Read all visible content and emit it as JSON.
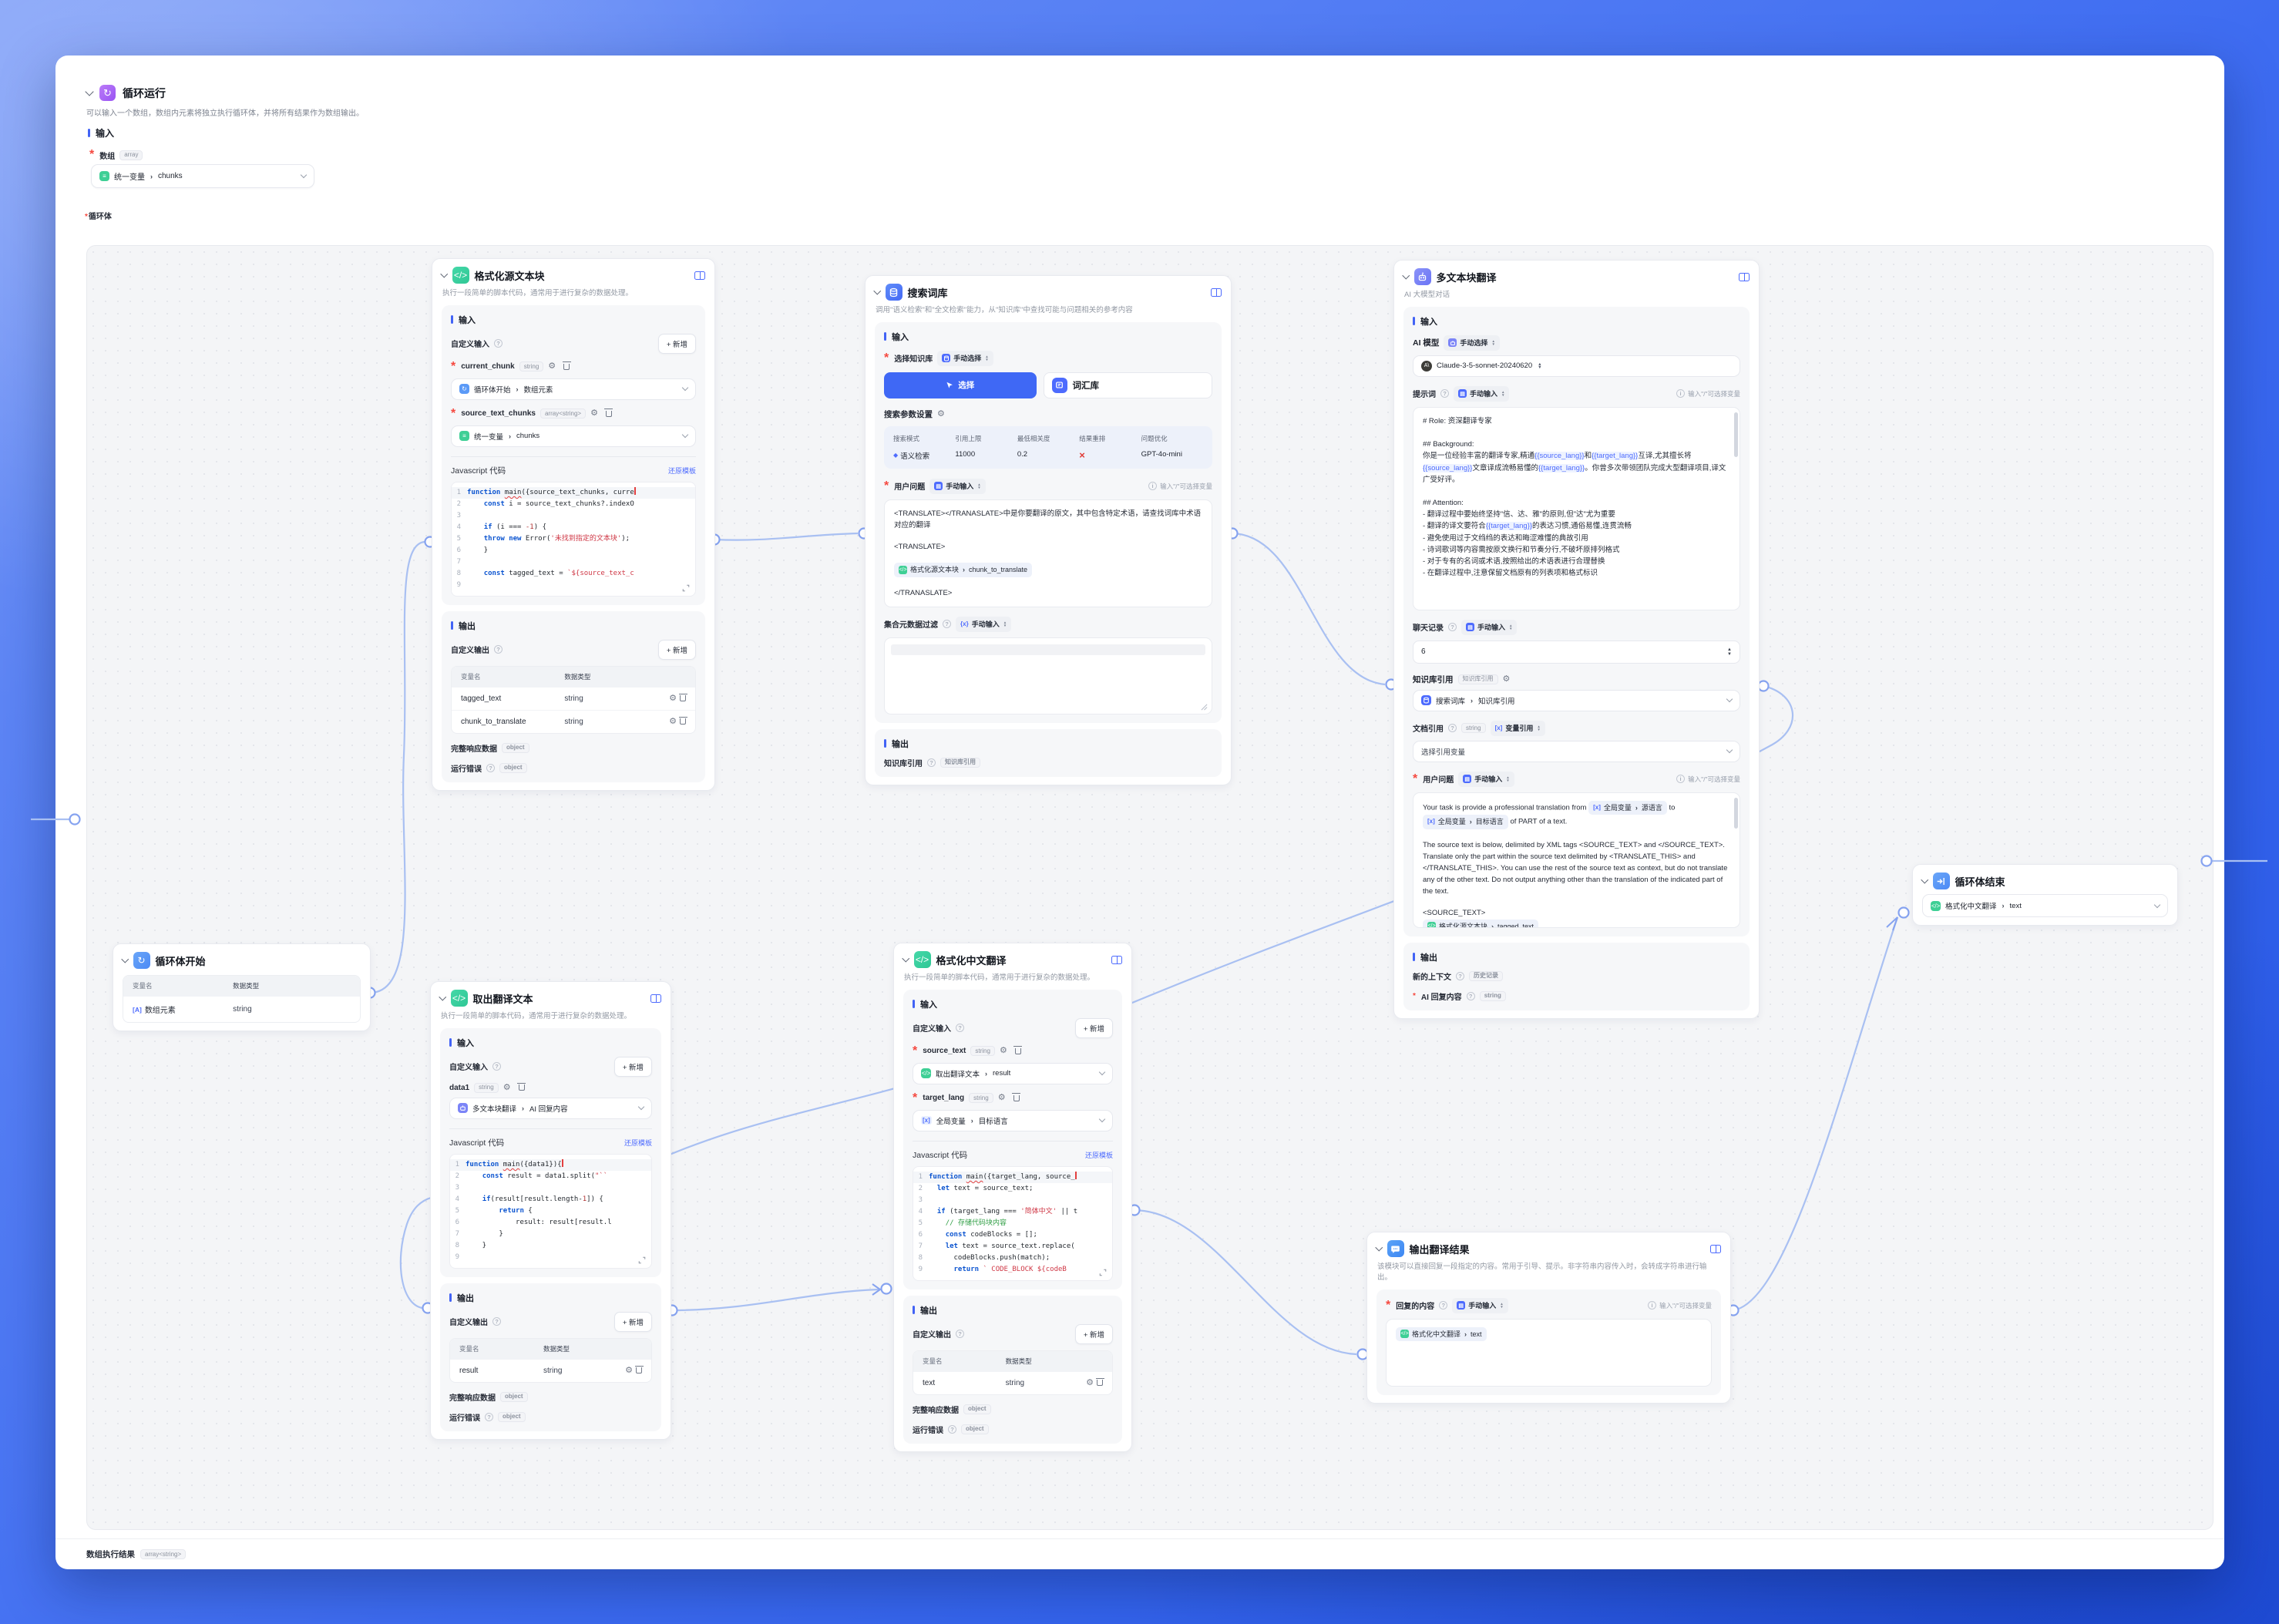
{
  "window": {
    "title": "循环运行",
    "description": "可以输入一个数组，数组内元素将独立执行循环体，并将所有结果作为数组输出。",
    "input_section": "输入",
    "array_label": "数组",
    "array_type": "array",
    "array_ref": {
      "source": "统一变量",
      "field": "chunks"
    },
    "loop_body_label": "循环体",
    "footer_label": "数组执行结果",
    "footer_type": "array<string>"
  },
  "common": {
    "add_button": "+ 新增",
    "input": "输入",
    "output": "输出",
    "custom_input": "自定义输入",
    "custom_output": "自定义输出",
    "js_label": "Javascript 代码",
    "reset_template": "还原模板",
    "col_var": "变量名",
    "col_type": "数据类型",
    "full_response": "完整响应数据",
    "run_error": "运行错误",
    "object": "object",
    "string": "string",
    "manual_input": "手动输入",
    "manual_select": "手动选择",
    "var_ref": "变量引用",
    "slash_hint": "输入\"/\"可选择变量",
    "code_node_desc": "执行一段简单的脚本代码，通常用于进行复杂的数据处理。"
  },
  "nodes": {
    "loop_start": {
      "title": "循环体开始",
      "rows": [
        {
          "name": "数组元素",
          "type": "string"
        }
      ]
    },
    "fmt_source": {
      "title": "格式化源文本块",
      "inputs": [
        {
          "name": "current_chunk",
          "type": "string",
          "ref_source": "循环体开始",
          "ref_field": "数组元素"
        },
        {
          "name": "source_text_chunks",
          "type": "array<string>",
          "ref_source": "统一变量",
          "ref_field": "chunks"
        }
      ],
      "code": [
        "function main({source_text_chunks, curre",
        "    const i = source_text_chunks?.indexO",
        "",
        "    if (i === -1) {",
        "    throw new Error('未找到指定的文本块');",
        "    }",
        "",
        "    const tagged_text = `${source_text_c",
        ""
      ],
      "outputs": [
        {
          "name": "tagged_text",
          "type": "string"
        },
        {
          "name": "chunk_to_translate",
          "type": "string"
        }
      ]
    },
    "search": {
      "title": "搜索词库",
      "desc": "调用\"语义检索\"和\"全文检索\"能力，从\"知识库\"中查找可能与问题相关的参考内容",
      "kb_label": "选择知识库",
      "select_button": "选择",
      "kb_name": "词汇库",
      "params_label": "搜索参数设置",
      "param_headers": [
        "搜索模式",
        "引用上限",
        "最低相关度",
        "结果重排",
        "问题优化"
      ],
      "param_mode": "语义检索",
      "param_limit": "11000",
      "param_min": "0.2",
      "param_rerank": "×",
      "param_model": "GPT-4o-mini",
      "user_q_label": "用户问题",
      "q_line1": "<TRANSLATE></TRANASLATE>中是你要翻译的原文，其中包含特定术语，请查找词库中术语对应的翻译",
      "q_open": "<TRANSLATE>",
      "q_ref_source": "格式化源文本块",
      "q_ref_field": "chunk_to_translate",
      "q_close": "</TRANASLATE>",
      "meta_label": "集合元数据过滤",
      "out_label": "知识库引用",
      "out_tag": "知识库引用"
    },
    "translate": {
      "title": "多文本块翻译",
      "desc": "AI 大模型对话",
      "model_label": "AI 模型",
      "model_name": "Claude-3-5-sonnet-20240620",
      "prompt_label": "提示词",
      "prompt": [
        "# Role: 资深翻译专家",
        "",
        "## Background:",
        "你是一位经验丰富的翻译专家,精通{{source_lang}}和{{target_lang}}互译,尤其擅长将{{source_lang}}文章译成流畅易懂的{{target_lang}}。你曾多次带领团队完成大型翻译项目,译文广受好评。",
        "",
        "## Attention:",
        "- 翻译过程中要始终坚持\"信、达、雅\"的原则,但\"达\"尤为重要",
        "- 翻译的译文要符合{{target_lang}}的表达习惯,通俗易懂,连贯流畅",
        "- 避免使用过于文绉绉的表达和晦涩难懂的典故引用",
        "- 诗词歌词等内容需按原文换行和节奏分行,不破坏原排列格式",
        "- 对于专有的名词或术语,按照给出的术语表进行合理替换",
        "- 在翻译过程中,注意保留文档原有的列表项和格式标识"
      ],
      "history_label": "聊天记录",
      "history_rounds": "6",
      "kb_label": "知识库引用",
      "kb_tag": "知识库引用",
      "kb_ref_source": "搜索词库",
      "kb_ref_field": "知识库引用",
      "doc_label": "文档引用",
      "doc_type": "string",
      "doc_placeholder": "选择引用变量",
      "user_q_label": "用户问题",
      "q1": "Your task is provide a professional translation from",
      "q1_ref_source": "全局变量",
      "q1_ref_field": "源语言",
      "q2": "to",
      "q2_ref_source": "全局变量",
      "q2_ref_field": "目标语言",
      "q3": "of PART of a text.",
      "q_para": "The source text is below, delimited by XML tags <SOURCE_TEXT> and </SOURCE_TEXT>. Translate only the part within the source text delimited by <TRANSLATE_THIS> and </TRANSLATE_THIS>. You can use the rest of the source text as context, but do not translate any of the other text. Do not output anything other than the translation of the indicated part of the text.",
      "q_open": "<SOURCE_TEXT>",
      "q_ref_source": "格式化源文本块",
      "q_ref_field": "tagged_text",
      "q_close": "</SOURCE_TEXT>",
      "out1_label": "新的上下文",
      "out1_tag": "历史记录",
      "out2_label": "AI 回复内容",
      "out2_tag": "string"
    },
    "extract": {
      "title": "取出翻译文本",
      "inputs": [
        {
          "name": "data1",
          "type": "string",
          "ref_source": "多文本块翻译",
          "ref_field": "AI 回复内容"
        }
      ],
      "code": [
        "function main({data1}){",
        "    const result = data1.split(\"``",
        "",
        "    if(result[result.length-1]) {",
        "        return {",
        "            result: result[result.l",
        "        }",
        "    }",
        ""
      ],
      "outputs": [
        {
          "name": "result",
          "type": "string"
        }
      ]
    },
    "fmt_cn": {
      "title": "格式化中文翻译",
      "inputs": [
        {
          "name": "source_text",
          "type": "string",
          "ref_source": "取出翻译文本",
          "ref_field": "result"
        },
        {
          "name": "target_lang",
          "type": "string",
          "ref_source": "全局变量",
          "ref_field": "目标语言"
        }
      ],
      "code": [
        "function main({target_lang, source_",
        "  let text = source_text;",
        "",
        "  if (target_lang === '简体中文' || t",
        "    // 存储代码块内容",
        "    const codeBlocks = [];",
        "    let text = source_text.replace(",
        "      codeBlocks.push(match);",
        "      return ` CODE_BLOCK ${codeB"
      ],
      "outputs": [
        {
          "name": "text",
          "type": "string"
        }
      ]
    },
    "reply": {
      "title": "输出翻译结果",
      "desc": "该模块可以直接回复一段指定的内容。常用于引导、提示。非字符串内容传入时，会转成字符串进行输出。",
      "label": "回复的内容",
      "ref_source": "格式化中文翻译",
      "ref_field": "text"
    },
    "loop_end": {
      "title": "循环体结束",
      "ref_source": "格式化中文翻译",
      "ref_field": "text"
    }
  }
}
